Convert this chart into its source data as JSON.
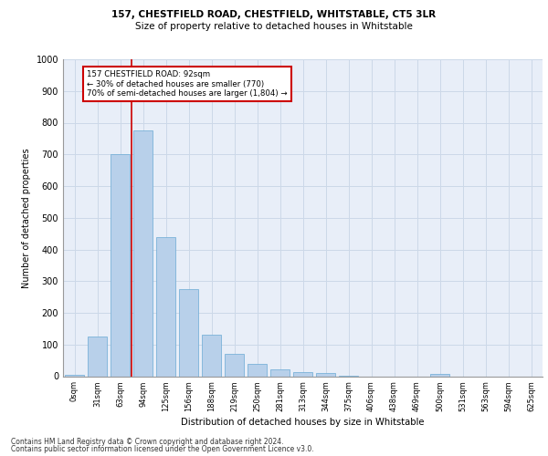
{
  "title_line1": "157, CHESTFIELD ROAD, CHESTFIELD, WHITSTABLE, CT5 3LR",
  "title_line2": "Size of property relative to detached houses in Whitstable",
  "xlabel": "Distribution of detached houses by size in Whitstable",
  "ylabel": "Number of detached properties",
  "footer_line1": "Contains HM Land Registry data © Crown copyright and database right 2024.",
  "footer_line2": "Contains public sector information licensed under the Open Government Licence v3.0.",
  "bar_labels": [
    "0sqm",
    "31sqm",
    "63sqm",
    "94sqm",
    "125sqm",
    "156sqm",
    "188sqm",
    "219sqm",
    "250sqm",
    "281sqm",
    "313sqm",
    "344sqm",
    "375sqm",
    "406sqm",
    "438sqm",
    "469sqm",
    "500sqm",
    "531sqm",
    "563sqm",
    "594sqm",
    "625sqm"
  ],
  "bar_values": [
    5,
    125,
    700,
    775,
    440,
    275,
    130,
    70,
    38,
    22,
    12,
    10,
    2,
    0,
    0,
    0,
    8,
    0,
    0,
    0,
    0
  ],
  "bar_color": "#b8d0ea",
  "bar_edge_color": "#6aaad4",
  "grid_color": "#ccd8e8",
  "background_color": "#e8eef8",
  "vline_color": "#cc0000",
  "vline_index": 2.5,
  "annotation_text": "157 CHESTFIELD ROAD: 92sqm\n← 30% of detached houses are smaller (770)\n70% of semi-detached houses are larger (1,804) →",
  "annotation_box_color": "#cc0000",
  "ylim": [
    0,
    1000
  ],
  "yticks": [
    0,
    100,
    200,
    300,
    400,
    500,
    600,
    700,
    800,
    900,
    1000
  ]
}
